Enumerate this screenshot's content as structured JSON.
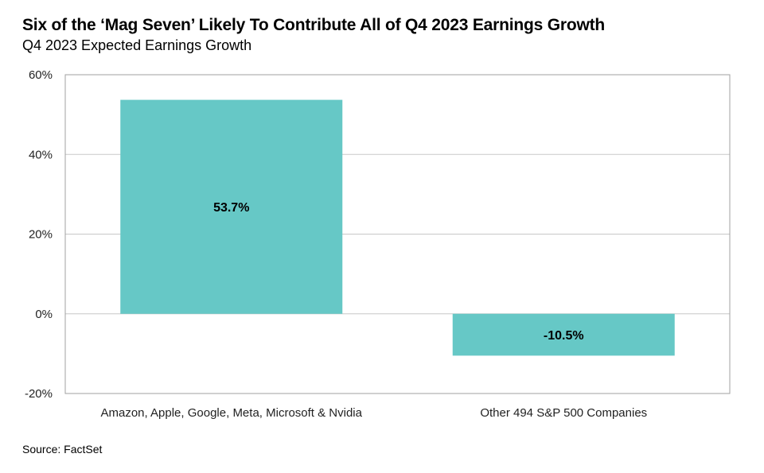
{
  "chart_data": {
    "type": "bar",
    "title": "Six of the ‘Mag Seven’ Likely To Contribute All of Q4 2023 Earnings Growth",
    "subtitle": "Q4 2023 Expected Earnings Growth",
    "categories": [
      "Amazon, Apple, Google, Meta, Microsoft & Nvidia",
      "Other 494 S&P 500 Companies"
    ],
    "values": [
      53.7,
      -10.5
    ],
    "data_labels": [
      "53.7%",
      "-10.5%"
    ],
    "ylim": [
      -20,
      60
    ],
    "yticks": [
      -20,
      0,
      20,
      40,
      60
    ],
    "ytick_labels": [
      "-20%",
      "0%",
      "20%",
      "40%",
      "60%"
    ],
    "xlabel": "",
    "ylabel": "",
    "grid": true,
    "bar_color": "#66c8c6",
    "source": "Source: FactSet"
  }
}
